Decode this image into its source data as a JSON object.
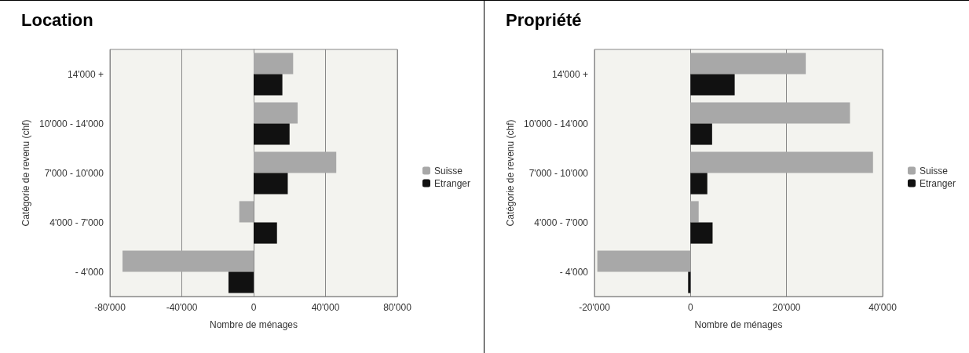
{
  "chart_data": [
    {
      "type": "bar",
      "title": "Location",
      "orientation": "horizontal",
      "categories": [
        "14'000 +",
        "10'000 - 14'000",
        "7'000 - 10'000",
        "4'000 - 7'000",
        "- 4'000"
      ],
      "series": [
        {
          "name": "Suisse",
          "color": "#a8a8a8",
          "values": [
            22000,
            24500,
            46000,
            -8000,
            -73000
          ]
        },
        {
          "name": "Etranger",
          "color": "#111111",
          "values": [
            16000,
            20000,
            19000,
            13000,
            -14000
          ]
        }
      ],
      "xlim": [
        -80000,
        80000
      ],
      "xticks": [
        {
          "value": -80000,
          "label": "-80'000"
        },
        {
          "value": -40000,
          "label": "-40'000"
        },
        0,
        {
          "value": 40000,
          "label": "40'000"
        },
        {
          "value": 80000,
          "label": "80'000"
        }
      ],
      "xlabel": "Nombre de ménages",
      "ylabel": "Catégorie de revenu (chf)",
      "grid": "x",
      "legend": "right"
    },
    {
      "type": "bar",
      "title": "Propriété",
      "orientation": "horizontal",
      "categories": [
        "14'000 +",
        "10'000 - 14'000",
        "7'000 - 10'000",
        "4'000 - 7'000",
        "- 4'000"
      ],
      "series": [
        {
          "name": "Suisse",
          "color": "#a8a8a8",
          "values": [
            24000,
            33200,
            38000,
            1700,
            -19400
          ]
        },
        {
          "name": "Etranger",
          "color": "#111111",
          "values": [
            9200,
            4500,
            3500,
            4600,
            -500
          ]
        }
      ],
      "xlim": [
        -20000,
        40000
      ],
      "xticks": [
        {
          "value": -20000,
          "label": "-20'000"
        },
        0,
        {
          "value": 20000,
          "label": "20'000"
        },
        {
          "value": 40000,
          "label": "40'000"
        }
      ],
      "xlabel": "Nombre de ménages",
      "ylabel": "Catégorie de revenu (chf)",
      "grid": "x",
      "legend": "right"
    }
  ]
}
